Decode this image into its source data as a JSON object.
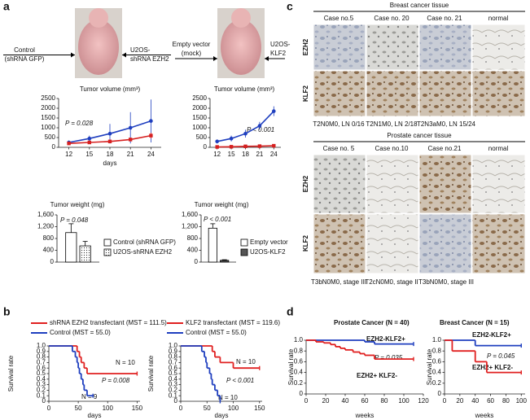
{
  "figure": {
    "panel_labels": [
      "a",
      "b",
      "c",
      "d"
    ],
    "mouse_labels": [
      [
        "Control",
        "(shRNA GFP)"
      ],
      [
        "U2OS-",
        "shRNA EZH2"
      ],
      [
        "Empty vector",
        "(mock)"
      ],
      [
        "U2OS-",
        "KLF2"
      ]
    ],
    "breast": {
      "title": "Breast cancer tissue",
      "cases": [
        "Case no.5",
        "Case no. 20",
        "Case no. 21",
        "normal"
      ],
      "rows": [
        "EZH2",
        "KLF2"
      ],
      "captions": [
        "T2N0M0, LN 0/16",
        "T2N1M0, LN 2/18",
        "T2N3aM0, LN 15/24"
      ]
    },
    "prostate": {
      "title": "Prostate cancer tissue",
      "cases": [
        "Case no. 5",
        "Case no.10",
        "Case no.21",
        "normal"
      ],
      "rows": [
        "EZH2",
        "KLF2"
      ],
      "captions": [
        "T3bN0M0, stage III",
        "T2cN0M0, stage II",
        "T3bN0M0, stage III"
      ]
    }
  },
  "chart_data": [
    {
      "type": "line",
      "title": "Tumor volume (mm³)",
      "xlabel": "days",
      "x": [
        12,
        15,
        18,
        21,
        24
      ],
      "xlim": [
        10.5,
        25.5
      ],
      "xticks": [
        12,
        15,
        18,
        21,
        24
      ],
      "ylim": [
        0,
        2500
      ],
      "yticks": [
        0,
        500,
        1000,
        1500,
        2000,
        2500
      ],
      "annotations": [
        "P = 0.028"
      ],
      "series": [
        {
          "color": "#1f3fbf",
          "values": [
            250,
            450,
            700,
            1000,
            1350
          ],
          "errors": [
            100,
            150,
            500,
            800,
            1100
          ]
        },
        {
          "color": "#d62020",
          "values": [
            200,
            250,
            300,
            400,
            600
          ],
          "errors": [
            50,
            60,
            80,
            100,
            150
          ]
        }
      ]
    },
    {
      "type": "line",
      "title": "Tumor volume (mm³)",
      "x": [
        12,
        15,
        18,
        21,
        24
      ],
      "xlim": [
        10.5,
        25.5
      ],
      "xticks": [
        12,
        15,
        18,
        21,
        24
      ],
      "ylim": [
        0,
        2500
      ],
      "yticks": [
        0,
        500,
        1000,
        1500,
        2000,
        2500
      ],
      "annotations": [
        "P < 0.001"
      ],
      "series": [
        {
          "color": "#1f3fbf",
          "values": [
            300,
            450,
            700,
            1100,
            1850
          ],
          "errors": [
            100,
            150,
            200,
            200,
            250
          ]
        },
        {
          "color": "#d62020",
          "values": [
            20,
            30,
            50,
            60,
            80
          ],
          "errors": [
            10,
            10,
            20,
            20,
            30
          ]
        }
      ]
    },
    {
      "type": "bar",
      "title": "Tumor weight (mg)",
      "ylim": [
        0,
        1600
      ],
      "yticks": [
        0,
        400,
        800,
        {
          "value": 1200,
          "label": "1,200"
        },
        {
          "value": 1600,
          "label": "1,600"
        }
      ],
      "annotations": [
        "P = 0.048"
      ],
      "series": [
        {
          "name": "Control (shRNA GFP)",
          "color": "#ffffff",
          "values": [
            1000
          ],
          "errors": [
            300
          ]
        },
        {
          "name": "U2OS-shRNA EZH2",
          "color": "#ffffff",
          "pattern": "dots",
          "values": [
            550
          ],
          "errors": [
            150
          ]
        }
      ]
    },
    {
      "type": "bar",
      "title": "Tumor weight (mg)",
      "ylim": [
        0,
        1600
      ],
      "yticks": [
        0,
        400,
        800,
        {
          "value": 1200,
          "label": "1,200"
        },
        {
          "value": 1600,
          "label": "1,600"
        }
      ],
      "annotations": [
        "P < 0.001"
      ],
      "series": [
        {
          "name": "Empty vector",
          "color": "#ffffff",
          "values": [
            1150
          ],
          "errors": [
            150
          ]
        },
        {
          "name": "U2OS-KLF2",
          "color": "#555555",
          "values": [
            60
          ],
          "errors": [
            20
          ]
        }
      ]
    },
    {
      "type": "step",
      "xlabel": "days",
      "ylabel": "Survival rate",
      "xlim": [
        0,
        155
      ],
      "xticks": [
        0,
        50,
        100,
        150
      ],
      "ylim": [
        0,
        1
      ],
      "yticks": [
        0,
        0.1,
        0.2,
        0.3,
        0.4,
        0.5,
        0.6,
        0.7,
        0.8,
        0.9,
        {
          "value": 1,
          "label": "1.0"
        }
      ],
      "annotations": [
        "N = 10",
        "P = 0.008",
        "N = 9"
      ],
      "series": [
        {
          "name": "shRNA EZH2 transfectant (MST = 111.5)",
          "color": "#e02020",
          "x": [
            0,
            48,
            52,
            55,
            60,
            65,
            150
          ],
          "values": [
            1,
            0.9,
            0.8,
            0.7,
            0.6,
            0.5,
            0.5
          ]
        },
        {
          "name": "Control (MST = 55.0)",
          "color": "#1f3fbf",
          "x": [
            0,
            40,
            45,
            48,
            50,
            52,
            55,
            58,
            60,
            65,
            75
          ],
          "values": [
            1,
            0.9,
            0.8,
            0.7,
            0.6,
            0.5,
            0.4,
            0.3,
            0.2,
            0.1,
            0.1
          ]
        }
      ]
    },
    {
      "type": "step",
      "xlabel": "days",
      "ylabel": "Survival rate",
      "xlim": [
        0,
        155
      ],
      "xticks": [
        0,
        50,
        100,
        150
      ],
      "ylim": [
        0,
        1
      ],
      "yticks": [
        0,
        0.1,
        0.2,
        0.3,
        0.4,
        0.5,
        0.6,
        0.7,
        0.8,
        0.9,
        {
          "value": 1,
          "label": "1.0"
        }
      ],
      "annotations": [
        "N = 10",
        "P < 0.001",
        "N = 10"
      ],
      "series": [
        {
          "name": "KLF2 transfectant (MST = 119.6)",
          "color": "#e02020",
          "x": [
            0,
            60,
            65,
            75,
            100,
            150
          ],
          "values": [
            1,
            0.9,
            0.8,
            0.7,
            0.6,
            0.6
          ]
        },
        {
          "name": "Control (MST = 55.0)",
          "color": "#1f3fbf",
          "x": [
            0,
            40,
            45,
            48,
            50,
            55,
            58,
            60,
            65,
            70,
            75
          ],
          "values": [
            1,
            0.9,
            0.8,
            0.7,
            0.6,
            0.5,
            0.4,
            0.3,
            0.2,
            0.1,
            0
          ]
        }
      ]
    },
    {
      "type": "step",
      "title": "Prostate Cancer (N = 40)",
      "xlabel": "weeks",
      "ylabel": "Survival rate",
      "xlim": [
        0,
        120
      ],
      "xticks": [
        0,
        20,
        40,
        60,
        80,
        100,
        120
      ],
      "ylim": [
        0,
        1
      ],
      "yticks": [
        0,
        0.2,
        0.4,
        0.6,
        0.8,
        {
          "value": 1,
          "label": "1.0"
        }
      ],
      "annotations": [
        "EZH2-KLF2+",
        "P = 0.035",
        "EZH2+ KLF2-"
      ],
      "series": [
        {
          "color": "#1f3fbf",
          "x": [
            0,
            60,
            70,
            110
          ],
          "values": [
            1,
            0.97,
            0.93,
            0.93
          ]
        },
        {
          "color": "#e02020",
          "x": [
            0,
            10,
            18,
            25,
            30,
            35,
            40,
            48,
            55,
            60,
            70,
            110
          ],
          "values": [
            1,
            0.97,
            0.95,
            0.92,
            0.88,
            0.85,
            0.82,
            0.78,
            0.75,
            0.72,
            0.65,
            0.65
          ]
        }
      ]
    },
    {
      "type": "step",
      "title": "Breast Cancer (N = 15)",
      "xlabel": "weeks",
      "ylabel": "Survival rate",
      "xlim": [
        0,
        105
      ],
      "xticks": [
        0,
        20,
        40,
        60,
        80,
        100
      ],
      "ylim": [
        0,
        1
      ],
      "yticks": [
        0,
        0.2,
        0.4,
        0.6,
        0.8,
        {
          "value": 1,
          "label": "1.0"
        }
      ],
      "annotations": [
        "EZH2-KLF2+",
        "P = 0.045",
        "EZH2+ KLF2-"
      ],
      "series": [
        {
          "color": "#1f3fbf",
          "x": [
            0,
            40,
            100
          ],
          "values": [
            1,
            0.9,
            0.9
          ]
        },
        {
          "color": "#e02020",
          "x": [
            0,
            10,
            40,
            55,
            100
          ],
          "values": [
            1,
            0.8,
            0.6,
            0.4,
            0.4
          ]
        }
      ]
    }
  ]
}
